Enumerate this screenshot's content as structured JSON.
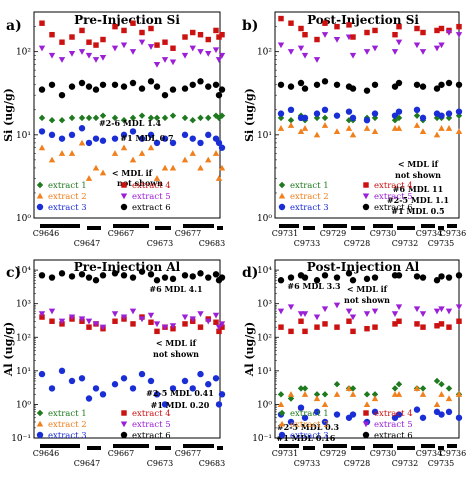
{
  "colors": {
    "extract1": "#1f7a1f",
    "extract2": "#f07f1c",
    "extract3": "#1a2ed6",
    "extract4": "#cc1111",
    "extract5": "#9b1fd6",
    "extract6": "#000000"
  },
  "chart_data": [
    {
      "type": "scatter",
      "panel_label": "a)",
      "title": "Pre-Injection Si",
      "ylabel": "Si (ug/g)",
      "yscale": "log",
      "ylim": [
        1,
        300
      ],
      "yticks": [
        "10⁰",
        "10¹",
        "10²"
      ],
      "samples": [
        "C9646",
        "C9647",
        "C9667",
        "C9673",
        "C9677",
        "C9683"
      ],
      "groups": [
        {
          "e1": [
            16,
            15,
            15,
            16,
            16
          ],
          "e2": [
            7,
            5,
            6,
            6,
            8
          ],
          "e3": [
            11,
            10,
            9,
            10,
            12
          ],
          "e4": [
            220,
            160,
            130,
            150,
            180
          ],
          "e5": [
            110,
            90,
            80,
            95,
            100
          ],
          "e6": [
            35,
            40,
            30,
            38,
            42
          ]
        },
        {
          "e1": [
            16,
            16,
            17
          ],
          "e2": [
            3,
            4,
            3.5
          ],
          "e3": [
            8,
            9,
            8.5
          ],
          "e4": [
            130,
            120,
            140
          ],
          "e5": [
            90,
            80,
            85
          ],
          "e6": [
            38,
            35,
            40
          ]
        },
        {
          "e1": [
            16,
            15,
            16,
            17,
            16
          ],
          "e2": [
            6,
            7,
            5,
            6,
            7
          ],
          "e3": [
            9,
            10,
            11,
            9,
            10
          ],
          "e4": [
            200,
            180,
            220,
            170,
            190
          ],
          "e5": [
            110,
            120,
            100,
            130,
            115
          ],
          "e6": [
            40,
            38,
            42,
            36,
            44
          ]
        },
        {
          "e1": [
            16,
            16,
            17
          ],
          "e2": [
            3,
            4,
            4
          ],
          "e3": [
            8,
            9,
            8
          ],
          "e4": [
            120,
            130,
            110
          ],
          "e5": [
            70,
            80,
            75
          ],
          "e6": [
            38,
            30,
            35
          ]
        },
        {
          "e1": [
            16,
            15,
            16,
            16,
            17
          ],
          "e2": [
            5,
            6,
            4,
            5,
            6
          ],
          "e3": [
            10,
            9,
            8,
            10,
            9
          ],
          "e4": [
            150,
            170,
            160,
            140,
            180
          ],
          "e5": [
            90,
            110,
            100,
            95,
            105
          ],
          "e6": [
            36,
            40,
            44,
            38,
            40
          ]
        },
        {
          "e1": [
            16,
            17
          ],
          "e2": [
            3,
            4
          ],
          "e3": [
            8,
            7
          ],
          "e4": [
            150,
            160
          ],
          "e5": [
            80,
            90
          ],
          "e6": [
            30,
            35
          ]
        }
      ],
      "annotations": [
        "#2-6 MDL 1.4",
        "#1 MDL 0.7",
        "< MDL if",
        "not shown"
      ],
      "legend": [
        "extract 1",
        "extract 2",
        "extract 3",
        "extract 4",
        "extract 5",
        "extract 6"
      ]
    },
    {
      "type": "scatter",
      "panel_label": "b)",
      "title": "Post-Injection Si",
      "ylabel": "Si (ug/g)",
      "yscale": "log",
      "ylim": [
        1,
        300
      ],
      "yticks": [
        "10⁰",
        "10¹",
        "10²"
      ],
      "samples": [
        "C9731",
        "C9733",
        "C9729",
        "C9728",
        "C9730",
        "C9732",
        "C9734",
        "C9735",
        "C9736"
      ],
      "groups": [
        {
          "e1": [
            16,
            15,
            17
          ],
          "e2": [
            12,
            13,
            11
          ],
          "e3": [
            18,
            20,
            16
          ],
          "e4": [
            250,
            220,
            190
          ],
          "e5": [
            120,
            100,
            110
          ],
          "e6": [
            40,
            38,
            42
          ]
        },
        {
          "e1": [
            15,
            16
          ],
          "e2": [
            12,
            10
          ],
          "e3": [
            16,
            18
          ],
          "e4": [
            160,
            140
          ],
          "e5": [
            90,
            80
          ],
          "e6": [
            36,
            40
          ]
        },
        {
          "e1": [
            16,
            17,
            15
          ],
          "e2": [
            13,
            11,
            12
          ],
          "e3": [
            20,
            17,
            19
          ],
          "e4": [
            220,
            200,
            210
          ],
          "e5": [
            160,
            140,
            150
          ],
          "e6": [
            44,
            40,
            38
          ]
        },
        {
          "e1": [
            15,
            16
          ],
          "e2": [
            10,
            12
          ],
          "e3": [
            16,
            15
          ],
          "e4": [
            150,
            170
          ],
          "e5": [
            90,
            100
          ],
          "e6": [
            36,
            34
          ]
        },
        {
          "e1": [
            16,
            15
          ],
          "e2": [
            11,
            12
          ],
          "e3": [
            18,
            17
          ],
          "e4": [
            180,
            160
          ],
          "e5": [
            110,
            100
          ],
          "e6": [
            40,
            38
          ]
        },
        {
          "e1": [
            16,
            17
          ],
          "e2": [
            12,
            13
          ],
          "e3": [
            19,
            20
          ],
          "e4": [
            200,
            190
          ],
          "e5": [
            130,
            120
          ],
          "e6": [
            42,
            40
          ]
        },
        {
          "e1": [
            15,
            16
          ],
          "e2": [
            11,
            10
          ],
          "e3": [
            16,
            18
          ],
          "e4": [
            170,
            180
          ],
          "e5": [
            100,
            110
          ],
          "e6": [
            38,
            36
          ]
        },
        {
          "e1": [
            16
          ],
          "e2": [
            12
          ],
          "e3": [
            17
          ],
          "e4": [
            190
          ],
          "e5": [
            120
          ],
          "e6": [
            40
          ]
        },
        {
          "e1": [
            16,
            17
          ],
          "e2": [
            12,
            11
          ],
          "e3": [
            18,
            19
          ],
          "e4": [
            180,
            200
          ],
          "e5": [
            170,
            160
          ],
          "e6": [
            42,
            40
          ]
        }
      ],
      "annotations": [
        "< MDL if",
        "not shown",
        "#6 MDL 11",
        "#2-5 MDL 1.1",
        "#1 MDL 0.5"
      ],
      "legend": [
        "extract 1",
        "extract 2",
        "extract 3",
        "extract 4",
        "extract 5",
        "extract 6"
      ]
    },
    {
      "type": "scatter",
      "panel_label": "c)",
      "title": "Pre-Injection Al",
      "ylabel": "Al (ug/g)",
      "yscale": "log",
      "ylim": [
        0.1,
        20000
      ],
      "yticks": [
        "10⁻¹",
        "10⁰",
        "10¹",
        "10²",
        "10³",
        "10⁴"
      ],
      "samples": [
        "C9646",
        "C9647",
        "C9667",
        "C9673",
        "C9677",
        "C9683"
      ],
      "groups": [
        {
          "e3": [
            8,
            3,
            10,
            5,
            6
          ],
          "e4": [
            400,
            300,
            250,
            350,
            300
          ],
          "e5": [
            500,
            600,
            300,
            400,
            350
          ],
          "e6": [
            7000,
            6000,
            8000,
            6500,
            7500
          ]
        },
        {
          "e3": [
            1.5,
            3,
            2
          ],
          "e4": [
            200,
            250,
            180
          ],
          "e5": [
            300,
            250,
            200
          ],
          "e6": [
            6000,
            5000,
            7000
          ]
        },
        {
          "e3": [
            4,
            6,
            3,
            8,
            5
          ],
          "e4": [
            300,
            350,
            250,
            400,
            280
          ],
          "e5": [
            500,
            400,
            600,
            350,
            450
          ],
          "e6": [
            8000,
            7000,
            6000,
            9000,
            7500
          ]
        },
        {
          "e3": [
            2,
            1,
            3
          ],
          "e4": [
            150,
            200,
            180
          ],
          "e5": [
            250,
            200,
            220
          ],
          "e6": [
            5000,
            6000,
            5500
          ]
        },
        {
          "e3": [
            5,
            3,
            8,
            4,
            6
          ],
          "e4": [
            250,
            300,
            200,
            350,
            280
          ],
          "e5": [
            400,
            350,
            500,
            300,
            450
          ],
          "e6": [
            7000,
            6500,
            8000,
            6000,
            7500
          ]
        },
        {
          "e3": [
            1,
            2
          ],
          "e4": [
            150,
            200
          ],
          "e5": [
            200,
            250
          ],
          "e6": [
            5000,
            6000
          ]
        }
      ],
      "annotations": [
        "#6 MDL 4.1",
        "< MDL if",
        "not shown",
        "#2-5 MDL 0.41",
        "#1 MDL 0.20"
      ],
      "legend": [
        "extract 1",
        "extract 2",
        "extract 3",
        "extract 4",
        "extract 5",
        "extract 6"
      ]
    },
    {
      "type": "scatter",
      "panel_label": "d)",
      "title": "Post-Injection Al",
      "ylabel": "Al (ug/g)",
      "yscale": "log",
      "ylim": [
        0.1,
        20000
      ],
      "yticks": [
        "10⁻¹",
        "10⁰",
        "10¹",
        "10²",
        "10³",
        "10⁴"
      ],
      "samples": [
        "C9731",
        "C9733",
        "C9729",
        "C9728",
        "C9730",
        "C9732",
        "C9734",
        "C9735",
        "C9736"
      ],
      "groups": [
        {
          "e1": [
            2,
            1.5,
            3
          ],
          "e2": [
            1,
            2,
            0.8
          ],
          "e3": [
            0.5,
            0.3,
            0.8
          ],
          "e4": [
            200,
            150,
            300
          ],
          "e5": [
            600,
            800,
            500
          ],
          "e6": [
            5000,
            6000,
            7000
          ]
        },
        {
          "e1": [
            3,
            2
          ],
          "e2": [
            2,
            1.5
          ],
          "e3": [
            0.4,
            0.6
          ],
          "e4": [
            150,
            200
          ],
          "e5": [
            500,
            400
          ],
          "e6": [
            6000,
            5000
          ]
        },
        {
          "e1": [
            2,
            4,
            3
          ],
          "e2": [
            1,
            2,
            3
          ],
          "e3": [
            0.3,
            0.5,
            0.4
          ],
          "e4": [
            250,
            200,
            300
          ],
          "e5": [
            700,
            900,
            600
          ],
          "e6": [
            7000,
            6000,
            8000
          ]
        },
        {
          "e1": [
            3,
            2
          ],
          "e2": [
            2,
            1
          ],
          "e3": [
            0.5,
            0.3
          ],
          "e4": [
            150,
            180
          ],
          "e5": [
            400,
            500
          ],
          "e6": [
            5000,
            5500
          ]
        },
        {
          "e1": [
            2,
            3
          ],
          "e2": [
            1.5,
            2
          ],
          "e3": [
            0.6,
            0.4
          ],
          "e4": [
            200,
            250
          ],
          "e5": [
            600,
            500
          ],
          "e6": [
            6000,
            7000
          ]
        },
        {
          "e1": [
            4,
            3
          ],
          "e2": [
            2,
            3
          ],
          "e3": [
            0.5,
            0.7
          ],
          "e4": [
            300,
            250
          ],
          "e5": [
            800,
            700
          ],
          "e6": [
            7000,
            6500
          ]
        },
        {
          "e1": [
            3,
            5
          ],
          "e2": [
            2,
            1
          ],
          "e3": [
            0.4,
            0.6
          ],
          "e4": [
            200,
            220
          ],
          "e5": [
            500,
            600
          ],
          "e6": [
            6000,
            5000
          ]
        },
        {
          "e1": [
            4
          ],
          "e2": [
            2
          ],
          "e3": [
            0.5
          ],
          "e4": [
            250
          ],
          "e5": [
            700
          ],
          "e6": [
            6500
          ]
        },
        {
          "e1": [
            3,
            2
          ],
          "e2": [
            1.5,
            2
          ],
          "e3": [
            0.6,
            0.4
          ],
          "e4": [
            200,
            300
          ],
          "e5": [
            600,
            800
          ],
          "e6": [
            6000,
            7000
          ]
        }
      ],
      "annotations": [
        "#6 MDL 3.3",
        "< MDL if",
        "not shown",
        "#2-5 MDL 0.3",
        "#1 MDL 0.16"
      ],
      "legend": [
        "extract 1",
        "extract 2",
        "extract 3",
        "extract 4",
        "extract 5",
        "extract 6"
      ]
    }
  ]
}
